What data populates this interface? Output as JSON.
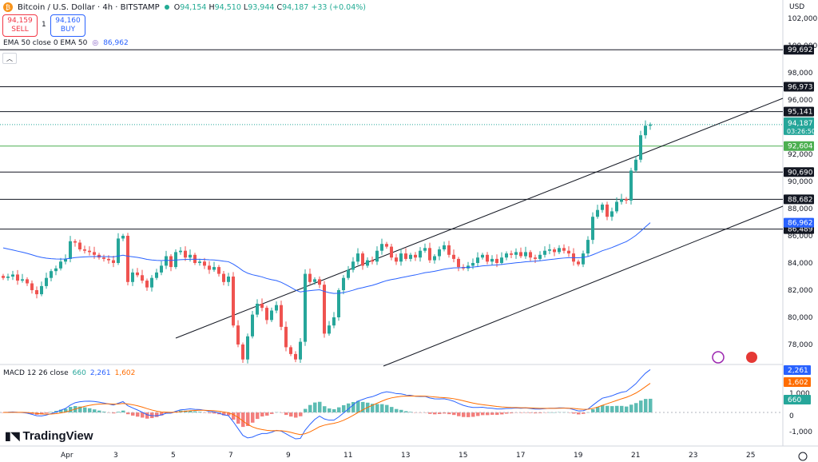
{
  "header": {
    "title": "Bitcoin / U.S. Dollar · 4h · BITSTAMP",
    "ohlc": {
      "o": "94,154",
      "h": "94,510",
      "l": "93,944",
      "c": "94,187",
      "chg": "+33 (+0.04%)"
    }
  },
  "trade": {
    "sell_price": "94,159",
    "sell_label": "SELL",
    "spread": "1",
    "buy_price": "94,160",
    "buy_label": "BUY"
  },
  "ema_label": {
    "text": "EMA 50 close 0 EMA 50",
    "value": "86,962"
  },
  "macd_label": {
    "text": "MACD 12 26 close",
    "hist": "660",
    "macd": "2,261",
    "signal": "1,602"
  },
  "brand": "TradingView",
  "currency": "USD",
  "colors": {
    "up": "#26a69a",
    "down": "#ef5350",
    "ema": "#2962ff",
    "macd": "#2962ff",
    "signal": "#ff6d00",
    "price_badge": "#26a69a"
  },
  "chart_data": {
    "type": "candlestick",
    "price_axis_ticks": [
      "102,000",
      "100,000",
      "98,000",
      "96,000",
      "94,000",
      "92,000",
      "90,000",
      "88,000",
      "86,000",
      "84,000",
      "82,000",
      "80,000",
      "78,000"
    ],
    "macd_axis_ticks": [
      "1,000",
      "0",
      "-1,000"
    ],
    "x_ticks": [
      {
        "label": "Apr",
        "idx": 13
      },
      {
        "label": "3",
        "idx": 24
      },
      {
        "label": "5",
        "idx": 36
      },
      {
        "label": "7",
        "idx": 48
      },
      {
        "label": "9",
        "idx": 60
      },
      {
        "label": "11",
        "idx": 72
      },
      {
        "label": "13",
        "idx": 84
      },
      {
        "label": "15",
        "idx": 96
      },
      {
        "label": "17",
        "idx": 108
      },
      {
        "label": "19",
        "idx": 120
      },
      {
        "label": "21",
        "idx": 132
      },
      {
        "label": "23",
        "idx": 144
      },
      {
        "label": "25",
        "idx": 156
      }
    ],
    "ylim": [
      76600,
      103000
    ],
    "candles_close": [
      82900,
      83000,
      83150,
      82700,
      82800,
      82500,
      82000,
      81700,
      82300,
      82900,
      83400,
      83600,
      84100,
      84300,
      85600,
      85500,
      85000,
      84900,
      84800,
      84600,
      84400,
      84300,
      84200,
      84000,
      85800,
      86000,
      82600,
      83300,
      83100,
      82700,
      82200,
      82900,
      83300,
      83800,
      84500,
      83700,
      84800,
      84900,
      84400,
      84600,
      84000,
      84100,
      83800,
      83500,
      83700,
      83200,
      82600,
      83000,
      79400,
      78000,
      76900,
      78600,
      80200,
      81000,
      80700,
      79800,
      80500,
      80900,
      79300,
      77800,
      77300,
      76900,
      78200,
      83200,
      82600,
      82800,
      82400,
      78800,
      79400,
      80000,
      82000,
      82900,
      83500,
      84100,
      84700,
      83800,
      84200,
      84100,
      84900,
      85400,
      85200,
      84400,
      84100,
      84700,
      84300,
      84600,
      84400,
      84900,
      85100,
      84200,
      84500,
      85000,
      85300,
      84600,
      84300,
      83700,
      83600,
      83800,
      84000,
      84400,
      84600,
      84100,
      84300,
      84000,
      84400,
      84700,
      84600,
      84800,
      84500,
      84800,
      84400,
      84300,
      84600,
      84900,
      85000,
      84800,
      85100,
      84900,
      84700,
      84100,
      83900,
      84700,
      85700,
      87400,
      87900,
      88300,
      87400,
      87800,
      88500,
      88700,
      88600,
      90800,
      91600,
      93400,
      94100,
      94187
    ],
    "ema_values_hint": "ends at 86,962",
    "macd": {
      "last_macd": 2261,
      "last_signal": 1602,
      "last_hist": 660
    },
    "horizontal_levels": [
      {
        "value": 99692,
        "label": "99,692",
        "style": "black"
      },
      {
        "value": 96973,
        "label": "96,973",
        "style": "black"
      },
      {
        "value": 95141,
        "label": "95,141",
        "style": "black"
      },
      {
        "value": 92604,
        "label": "92,604",
        "style": "green"
      },
      {
        "value": 90690,
        "label": "90,690",
        "style": "black"
      },
      {
        "value": 88682,
        "label": "88,682",
        "style": "black"
      },
      {
        "value": 86489,
        "label": "86,489",
        "style": "black"
      }
    ],
    "ema_badge": "86,962",
    "price_badge": {
      "value": "94,187",
      "timer": "03:26:50"
    },
    "macd_badges": {
      "macd": "2,261",
      "signal": "1,602",
      "hist": "660"
    }
  }
}
